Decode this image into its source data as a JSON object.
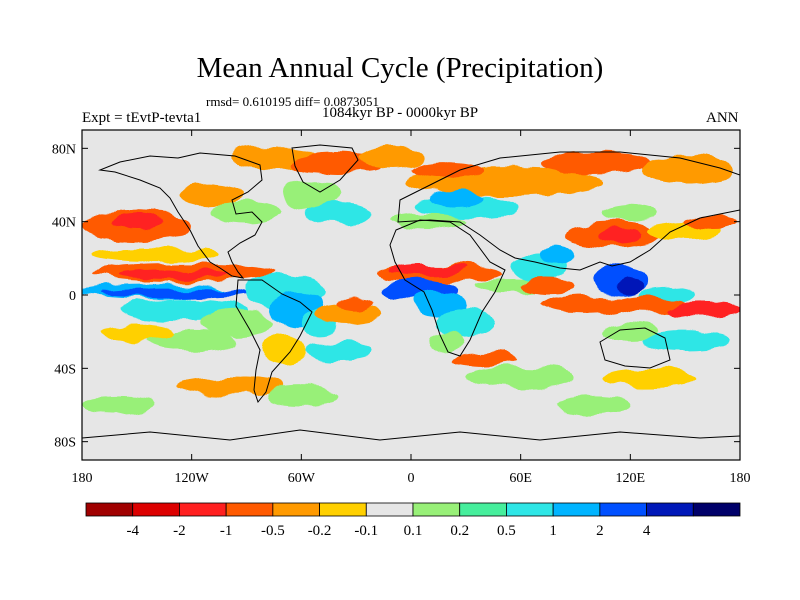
{
  "chart_data": {
    "type": "heatmap",
    "title": "Mean Annual Cycle (Precipitation)",
    "stats_text": "rmsd= 0.610195 diff= 0.0873051",
    "period": "1084kyr BP - 0000kyr BP",
    "experiment": "Expt = tEvtP-tevta1",
    "season": "ANN",
    "x_range": [
      -180,
      180
    ],
    "y_range": [
      -90,
      90
    ],
    "x_ticks": [
      {
        "value": -180,
        "label": "180"
      },
      {
        "value": -120,
        "label": "120W"
      },
      {
        "value": -60,
        "label": "60W"
      },
      {
        "value": 0,
        "label": "0"
      },
      {
        "value": 60,
        "label": "60E"
      },
      {
        "value": 120,
        "label": "120E"
      },
      {
        "value": 180,
        "label": "180"
      }
    ],
    "y_ticks": [
      {
        "value": 80,
        "label": "80N"
      },
      {
        "value": 40,
        "label": "40N"
      },
      {
        "value": 0,
        "label": "0"
      },
      {
        "value": -40,
        "label": "40S"
      },
      {
        "value": -80,
        "label": "80S"
      }
    ],
    "colorbar": {
      "colors": [
        "#a00000",
        "#dc0000",
        "#ff2020",
        "#ff5a00",
        "#ff9a00",
        "#ffd000",
        "#e6e6e6",
        "#98f078",
        "#46ee9c",
        "#2ee6e6",
        "#00b4ff",
        "#0050ff",
        "#0018b8",
        "#00006a"
      ],
      "labels": [
        "-4",
        "-2",
        "-1",
        "-0.5",
        "-0.2",
        "-0.1",
        "0.1",
        "0.2",
        "0.5",
        "1",
        "2",
        "4"
      ]
    },
    "background_level": "#e6e6e6",
    "anomaly_regions": [
      {
        "lon": -150,
        "lat": 38,
        "rx": 30,
        "ry": 8,
        "color": "#ff5a00"
      },
      {
        "lon": -150,
        "lat": 40,
        "rx": 15,
        "ry": 4,
        "color": "#ff2020"
      },
      {
        "lon": -125,
        "lat": 12,
        "rx": 50,
        "ry": 5,
        "color": "#ff5a00"
      },
      {
        "lon": -130,
        "lat": 11,
        "rx": 30,
        "ry": 2.5,
        "color": "#ff2020"
      },
      {
        "lon": -140,
        "lat": 22,
        "rx": 35,
        "ry": 4,
        "color": "#ffd000"
      },
      {
        "lon": -140,
        "lat": 2,
        "rx": 40,
        "ry": 4,
        "color": "#00b4ff"
      },
      {
        "lon": -130,
        "lat": 1,
        "rx": 40,
        "ry": 2.5,
        "color": "#0050ff"
      },
      {
        "lon": -125,
        "lat": -8,
        "rx": 35,
        "ry": 6,
        "color": "#2ee6e6"
      },
      {
        "lon": -70,
        "lat": 2,
        "rx": 22,
        "ry": 9,
        "color": "#2ee6e6"
      },
      {
        "lon": -62,
        "lat": -8,
        "rx": 14,
        "ry": 10,
        "color": "#00b4ff"
      },
      {
        "lon": -50,
        "lat": -15,
        "rx": 10,
        "ry": 7,
        "color": "#2ee6e6"
      },
      {
        "lon": -95,
        "lat": -15,
        "rx": 20,
        "ry": 7,
        "color": "#98f078"
      },
      {
        "lon": -70,
        "lat": -30,
        "rx": 12,
        "ry": 8,
        "color": "#ffd000"
      },
      {
        "lon": -35,
        "lat": -10,
        "rx": 18,
        "ry": 5,
        "color": "#ff9a00"
      },
      {
        "lon": -30,
        "lat": -5,
        "rx": 10,
        "ry": 3,
        "color": "#ff5a00"
      },
      {
        "lon": -40,
        "lat": 45,
        "rx": 20,
        "ry": 6,
        "color": "#2ee6e6"
      },
      {
        "lon": -55,
        "lat": 55,
        "rx": 15,
        "ry": 8,
        "color": "#98f078"
      },
      {
        "lon": -90,
        "lat": 45,
        "rx": 20,
        "ry": 6,
        "color": "#98f078"
      },
      {
        "lon": -110,
        "lat": 55,
        "rx": 18,
        "ry": 6,
        "color": "#ff9a00"
      },
      {
        "lon": -75,
        "lat": 75,
        "rx": 25,
        "ry": 6,
        "color": "#ff9a00"
      },
      {
        "lon": -40,
        "lat": 72,
        "rx": 25,
        "ry": 6,
        "color": "#ff5a00"
      },
      {
        "lon": -10,
        "lat": 75,
        "rx": 18,
        "ry": 6,
        "color": "#ff9a00"
      },
      {
        "lon": 50,
        "lat": 62,
        "rx": 55,
        "ry": 8,
        "color": "#ff9a00"
      },
      {
        "lon": 20,
        "lat": 68,
        "rx": 20,
        "ry": 5,
        "color": "#ff5a00"
      },
      {
        "lon": 100,
        "lat": 72,
        "rx": 30,
        "ry": 6,
        "color": "#ff5a00"
      },
      {
        "lon": 150,
        "lat": 68,
        "rx": 25,
        "ry": 8,
        "color": "#ff9a00"
      },
      {
        "lon": 30,
        "lat": 48,
        "rx": 28,
        "ry": 6,
        "color": "#2ee6e6"
      },
      {
        "lon": 25,
        "lat": 52,
        "rx": 15,
        "ry": 4,
        "color": "#00b4ff"
      },
      {
        "lon": 10,
        "lat": 40,
        "rx": 20,
        "ry": 4,
        "color": "#98f078"
      },
      {
        "lon": 15,
        "lat": 12,
        "rx": 35,
        "ry": 5,
        "color": "#ff5a00"
      },
      {
        "lon": 10,
        "lat": 14,
        "rx": 22,
        "ry": 3,
        "color": "#ff2020"
      },
      {
        "lon": 5,
        "lat": 3,
        "rx": 20,
        "ry": 6,
        "color": "#0050ff"
      },
      {
        "lon": 15,
        "lat": -5,
        "rx": 15,
        "ry": 7,
        "color": "#00b4ff"
      },
      {
        "lon": 30,
        "lat": -15,
        "rx": 15,
        "ry": 8,
        "color": "#2ee6e6"
      },
      {
        "lon": 20,
        "lat": -25,
        "rx": 10,
        "ry": 5,
        "color": "#98f078"
      },
      {
        "lon": 40,
        "lat": -35,
        "rx": 18,
        "ry": 4,
        "color": "#ff5a00"
      },
      {
        "lon": 55,
        "lat": 5,
        "rx": 20,
        "ry": 4,
        "color": "#98f078"
      },
      {
        "lon": 70,
        "lat": 15,
        "rx": 15,
        "ry": 8,
        "color": "#2ee6e6"
      },
      {
        "lon": 80,
        "lat": 22,
        "rx": 10,
        "ry": 6,
        "color": "#00b4ff"
      },
      {
        "lon": 75,
        "lat": 5,
        "rx": 15,
        "ry": 4,
        "color": "#ff5a00"
      },
      {
        "lon": 95,
        "lat": -5,
        "rx": 25,
        "ry": 5,
        "color": "#ff5a00"
      },
      {
        "lon": 110,
        "lat": 33,
        "rx": 25,
        "ry": 7,
        "color": "#ff5a00"
      },
      {
        "lon": 115,
        "lat": 32,
        "rx": 12,
        "ry": 4,
        "color": "#ff2020"
      },
      {
        "lon": 120,
        "lat": 45,
        "rx": 15,
        "ry": 5,
        "color": "#98f078"
      },
      {
        "lon": 150,
        "lat": 35,
        "rx": 20,
        "ry": 5,
        "color": "#ffd000"
      },
      {
        "lon": 165,
        "lat": 40,
        "rx": 15,
        "ry": 4,
        "color": "#ff5a00"
      },
      {
        "lon": 115,
        "lat": 8,
        "rx": 15,
        "ry": 8,
        "color": "#0050ff"
      },
      {
        "lon": 120,
        "lat": 5,
        "rx": 8,
        "ry": 4,
        "color": "#0018b8"
      },
      {
        "lon": 140,
        "lat": 0,
        "rx": 15,
        "ry": 5,
        "color": "#2ee6e6"
      },
      {
        "lon": 130,
        "lat": -5,
        "rx": 20,
        "ry": 5,
        "color": "#ff5a00"
      },
      {
        "lon": 160,
        "lat": -8,
        "rx": 20,
        "ry": 4,
        "color": "#ff2020"
      },
      {
        "lon": 150,
        "lat": -25,
        "rx": 25,
        "ry": 5,
        "color": "#2ee6e6"
      },
      {
        "lon": 120,
        "lat": -20,
        "rx": 15,
        "ry": 5,
        "color": "#98f078"
      },
      {
        "lon": -120,
        "lat": -25,
        "rx": 25,
        "ry": 6,
        "color": "#98f078"
      },
      {
        "lon": -150,
        "lat": -20,
        "rx": 20,
        "ry": 5,
        "color": "#ffd000"
      },
      {
        "lon": -40,
        "lat": -30,
        "rx": 18,
        "ry": 5,
        "color": "#2ee6e6"
      },
      {
        "lon": 60,
        "lat": -45,
        "rx": 30,
        "ry": 6,
        "color": "#98f078"
      },
      {
        "lon": 130,
        "lat": -45,
        "rx": 25,
        "ry": 5,
        "color": "#ffd000"
      },
      {
        "lon": -100,
        "lat": -50,
        "rx": 30,
        "ry": 5,
        "color": "#ff9a00"
      },
      {
        "lon": -60,
        "lat": -55,
        "rx": 20,
        "ry": 5,
        "color": "#98f078"
      },
      {
        "lon": -160,
        "lat": -60,
        "rx": 20,
        "ry": 5,
        "color": "#98f078"
      },
      {
        "lon": 100,
        "lat": -60,
        "rx": 20,
        "ry": 5,
        "color": "#98f078"
      }
    ]
  }
}
